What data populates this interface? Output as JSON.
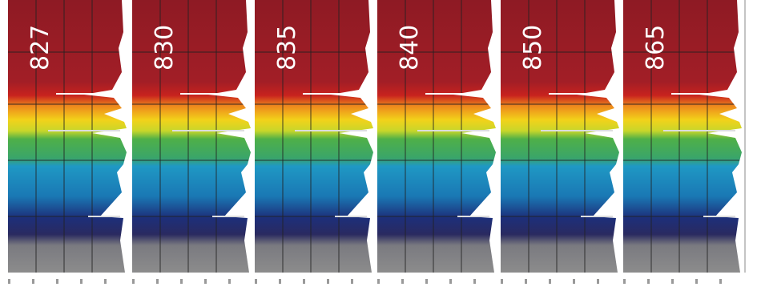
{
  "panels": [
    {
      "label": "827"
    },
    {
      "label": "830"
    },
    {
      "label": "835"
    },
    {
      "label": "840"
    },
    {
      "label": "850"
    },
    {
      "label": "865"
    }
  ]
}
